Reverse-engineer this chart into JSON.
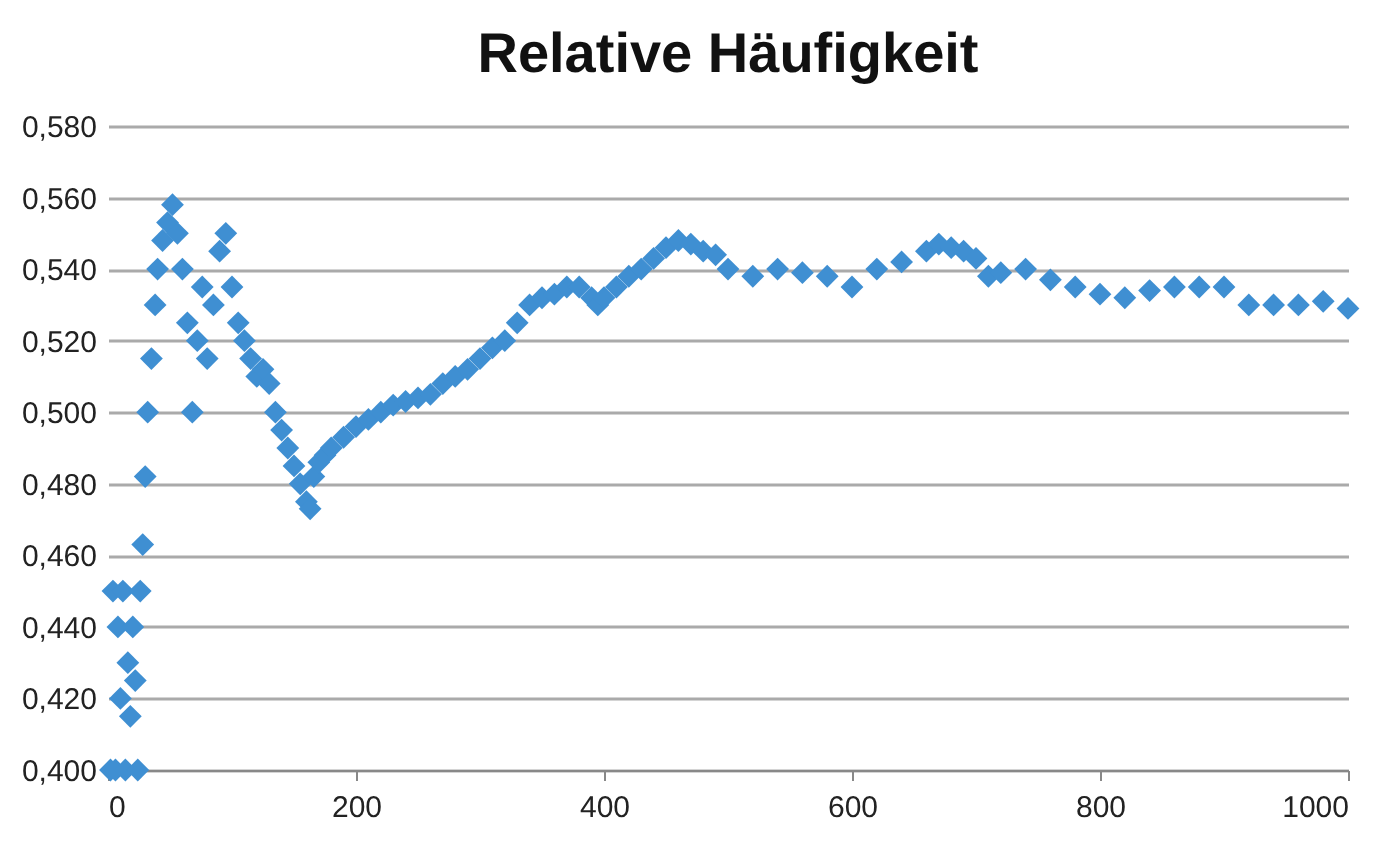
{
  "chart_data": {
    "type": "scatter",
    "title": "Relative Häufigkeit",
    "x": [
      2,
      4,
      6,
      8,
      10,
      12,
      14,
      16,
      18,
      20,
      22,
      24,
      26,
      28,
      30,
      32,
      35,
      38,
      40,
      44,
      48,
      52,
      56,
      60,
      64,
      68,
      72,
      76,
      80,
      85,
      90,
      95,
      100,
      105,
      110,
      115,
      120,
      125,
      130,
      135,
      140,
      145,
      150,
      155,
      160,
      163,
      166,
      170,
      175,
      180,
      190,
      200,
      210,
      220,
      230,
      240,
      250,
      260,
      270,
      280,
      290,
      300,
      310,
      320,
      330,
      340,
      350,
      360,
      370,
      380,
      390,
      395,
      400,
      410,
      420,
      430,
      440,
      450,
      460,
      470,
      480,
      490,
      500,
      520,
      540,
      560,
      580,
      600,
      620,
      640,
      660,
      670,
      680,
      690,
      700,
      710,
      720,
      740,
      760,
      780,
      800,
      820,
      840,
      860,
      880,
      900,
      920,
      940,
      960,
      980,
      1000
    ],
    "series": [
      {
        "color": "#3f8fd2",
        "values": [
          0.4,
          0.45,
          0.4,
          0.44,
          0.42,
          0.45,
          0.4,
          0.43,
          0.415,
          0.44,
          0.425,
          0.4,
          0.45,
          0.463,
          0.482,
          0.5,
          0.515,
          0.53,
          0.54,
          0.548,
          0.553,
          0.558,
          0.55,
          0.54,
          0.525,
          0.5,
          0.52,
          0.535,
          0.515,
          0.53,
          0.545,
          0.55,
          0.535,
          0.525,
          0.52,
          0.515,
          0.51,
          0.512,
          0.508,
          0.5,
          0.495,
          0.49,
          0.485,
          0.48,
          0.475,
          0.473,
          0.482,
          0.486,
          0.488,
          0.49,
          0.493,
          0.496,
          0.498,
          0.5,
          0.502,
          0.503,
          0.504,
          0.505,
          0.508,
          0.51,
          0.512,
          0.515,
          0.518,
          0.52,
          0.525,
          0.53,
          0.532,
          0.533,
          0.535,
          0.535,
          0.532,
          0.53,
          0.532,
          0.535,
          0.538,
          0.54,
          0.543,
          0.546,
          0.548,
          0.547,
          0.545,
          0.544,
          0.54,
          0.538,
          0.54,
          0.539,
          0.538,
          0.535,
          0.54,
          0.542,
          0.545,
          0.547,
          0.546,
          0.545,
          0.543,
          0.538,
          0.539,
          0.54,
          0.537,
          0.535,
          0.533,
          0.532,
          0.534,
          0.535,
          0.535,
          0.535,
          0.53,
          0.53,
          0.53,
          0.531,
          0.529
        ]
      }
    ],
    "xlim": [
      0,
      1000
    ],
    "xticks": [
      0,
      200,
      400,
      600,
      800,
      1000
    ],
    "ylim": [
      0.4,
      0.58
    ],
    "yticks": [
      {
        "value": 0.4,
        "label": "0,400"
      },
      {
        "value": 0.42,
        "label": "0,420"
      },
      {
        "value": 0.44,
        "label": "0,440"
      },
      {
        "value": 0.46,
        "label": "0,460"
      },
      {
        "value": 0.48,
        "label": "0,480"
      },
      {
        "value": 0.5,
        "label": "0,500"
      },
      {
        "value": 0.52,
        "label": "0,520"
      },
      {
        "value": 0.54,
        "label": "0,540"
      },
      {
        "value": 0.56,
        "label": "0,560"
      },
      {
        "value": 0.58,
        "label": "0,580"
      }
    ],
    "grid": "y",
    "marker": "diamond"
  }
}
